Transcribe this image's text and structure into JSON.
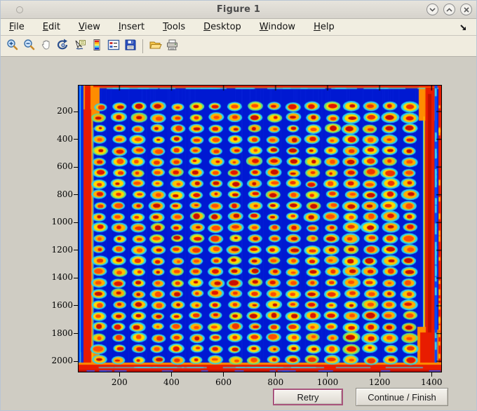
{
  "window": {
    "title": "Figure 1",
    "controls": {
      "minimize": "chevron-down",
      "maximize": "chevron-up",
      "close": "x"
    }
  },
  "menu_bar": {
    "items": [
      {
        "label": "File"
      },
      {
        "label": "Edit"
      },
      {
        "label": "View"
      },
      {
        "label": "Insert"
      },
      {
        "label": "Tools"
      },
      {
        "label": "Desktop"
      },
      {
        "label": "Window"
      },
      {
        "label": "Help"
      }
    ],
    "overflow_icon": "dock-arrow-icon"
  },
  "toolbar": {
    "buttons": [
      "zoom-in",
      "zoom-out",
      "pan",
      "rotate-3d",
      "data-cursor",
      "colorbar",
      "insert-legend",
      "save",
      "open",
      "print"
    ]
  },
  "plot": {
    "x_tick_labels": [
      "200",
      "400",
      "600",
      "800",
      "1000",
      "1200",
      "1400"
    ],
    "y_tick_labels": [
      "200",
      "400",
      "600",
      "800",
      "1000",
      "1200",
      "1400",
      "1600",
      "1800",
      "2000"
    ],
    "image": {
      "type": "heatmap",
      "colormap": "jet",
      "spot_grid": {
        "rows": 24,
        "cols": 17
      },
      "colors": {
        "background": "#0019d2",
        "spot_ring": "#2bd4ec",
        "spot_ring_green": "#5ce08a",
        "spot_mid": "#ffd400",
        "spot_core": "#e01400",
        "edge_red": "#e81c00",
        "edge_orange": "#ff8c00",
        "edge_yellow": "#ffd400",
        "edge_cyan": "#39d6f2",
        "edge_dark_red": "#c01000"
      }
    }
  },
  "action_buttons": {
    "retry": "Retry",
    "continue": "Continue / Finish",
    "retry_focus_border": "#a8547c"
  }
}
